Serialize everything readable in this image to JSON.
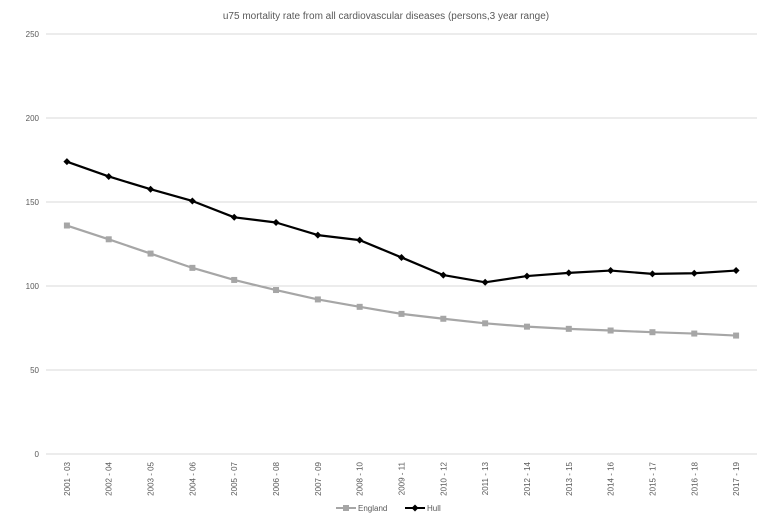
{
  "chart_data": {
    "type": "line",
    "title": "u75 mortality rate from all cardiovascular diseases (persons,3 year range)",
    "xlabel": "",
    "ylabel": "",
    "ylim": [
      0,
      250
    ],
    "yticks": [
      "0",
      "50",
      "100",
      "150",
      "200",
      "250"
    ],
    "grid": true,
    "legend_position": "bottom",
    "categories": [
      "2001 - 03",
      "2002 - 04",
      "2003 - 05",
      "2004 - 06",
      "2005 - 07",
      "2006 - 08",
      "2007 - 09",
      "2008 - 10",
      "2009 - 11",
      "2010 - 12",
      "2011 - 13",
      "2012 - 14",
      "2013 - 15",
      "2014 - 16",
      "2015 - 17",
      "2016 - 18",
      "2017 - 19"
    ],
    "series": [
      {
        "name": "England",
        "color": "#a6a6a6",
        "marker": "square",
        "values": [
          136.0,
          127.8,
          119.3,
          110.8,
          103.6,
          97.6,
          92.0,
          87.6,
          83.4,
          80.5,
          77.8,
          75.8,
          74.5,
          73.5,
          72.5,
          71.7,
          70.5
        ]
      },
      {
        "name": "Hull",
        "color": "#000000",
        "marker": "diamond",
        "values": [
          174.0,
          165.2,
          157.6,
          150.6,
          140.9,
          137.8,
          130.3,
          127.3,
          117.0,
          106.5,
          102.2,
          105.9,
          107.8,
          109.2,
          107.2,
          107.6,
          109.2
        ]
      }
    ]
  }
}
